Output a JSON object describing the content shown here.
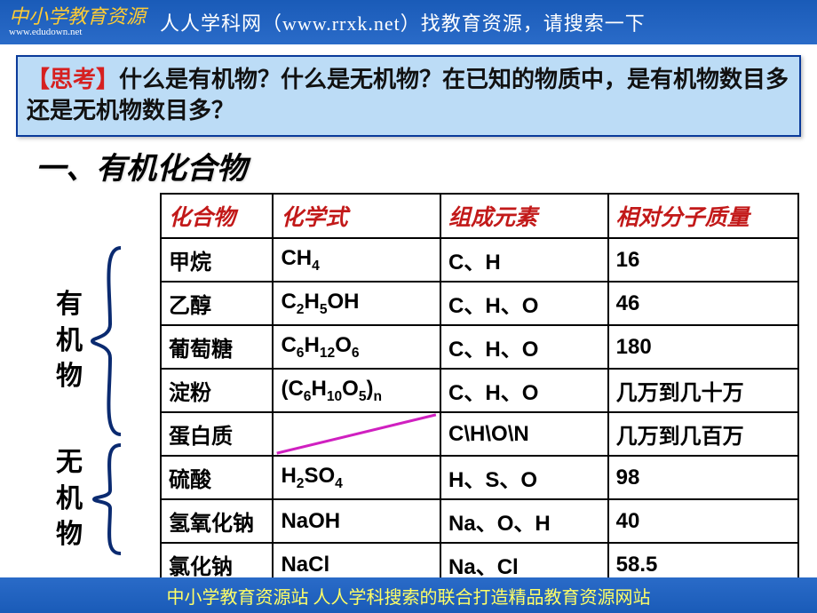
{
  "topbar": {
    "logo_main": "中小学教育资源",
    "logo_sub": "www.edudown.net",
    "text": "人人学科网（www.rrxk.net）找教育资源，请搜索一下"
  },
  "question": {
    "tag": "【思考】",
    "body": "什么是有机物？什么是无机物？在已知的物质中，是有机物数目多还是无机物数目多？"
  },
  "section_title": "一、有机化合物",
  "side": {
    "organic": "有机物",
    "inorganic": "无机物"
  },
  "table": {
    "headers": [
      "化合物",
      "化学式",
      "组成元素",
      "相对分子质量"
    ],
    "rows": [
      {
        "name": "甲烷",
        "formula_html": "CH<sub>4</sub>",
        "elements": "C、H",
        "mass": "16",
        "mass_cn": false
      },
      {
        "name": "乙醇",
        "formula_html": "C<sub>2</sub>H<sub>5</sub>OH",
        "elements": "C、H、O",
        "mass": "46",
        "mass_cn": false
      },
      {
        "name": "葡萄糖",
        "formula_html": "C<sub>6</sub>H<sub>12</sub>O<sub>6</sub>",
        "elements": "C、H、O",
        "mass": "180",
        "mass_cn": false
      },
      {
        "name": "淀粉",
        "formula_html": "(C<sub>6</sub>H<sub>10</sub>O<sub>5</sub>)<sub>n</sub>",
        "elements": "C、H、O",
        "mass": "几万到几十万",
        "mass_cn": true
      },
      {
        "name": "蛋白质",
        "formula_html": "",
        "elements": "C\\H\\O\\N",
        "mass": "几万到几百万",
        "mass_cn": true,
        "diagonal": true
      },
      {
        "name": "硫酸",
        "formula_html": "H<sub>2</sub>SO<sub>4</sub>",
        "elements": "H、S、O",
        "mass": "98",
        "mass_cn": false
      },
      {
        "name": "氢氧化钠",
        "formula_html": "NaOH",
        "elements": "Na、O、H",
        "mass": "40",
        "mass_cn": false
      },
      {
        "name": "氯化钠",
        "formula_html": "NaCl",
        "elements": "Na、Cl",
        "mass": "58.5",
        "mass_cn": false
      }
    ]
  },
  "colors": {
    "header_text": "#c21919",
    "brace_stroke": "#0a2a70",
    "diag_stroke": "#d020c0",
    "topbar_bg": "#1a5bb8",
    "question_bg": "#bcdcf6",
    "question_border": "#0a3a9a"
  },
  "footer": "中小学教育资源站 人人学科搜索的联合打造精品教育资源网站"
}
